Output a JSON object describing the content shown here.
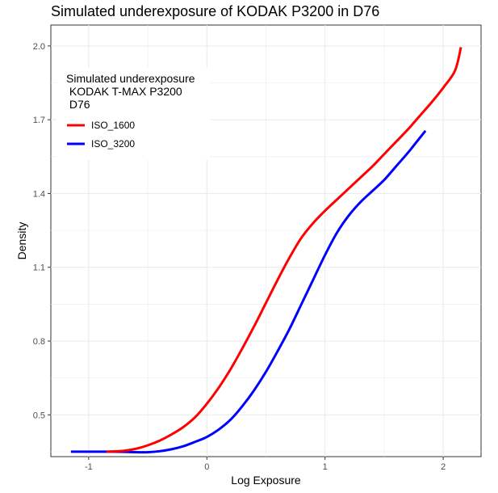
{
  "chart_data": {
    "type": "line",
    "title": "Simulated underexposure of KODAK P3200 in D76",
    "xlabel": "Log Exposure",
    "ylabel": "Density",
    "xlim": [
      -1.32,
      2.32
    ],
    "ylim": [
      0.33,
      2.085
    ],
    "x_ticks": [
      -1,
      0,
      1,
      2
    ],
    "x_tick_labels": [
      "-1",
      "0",
      "1",
      "2"
    ],
    "y_ticks": [
      0.5,
      0.8,
      1.1,
      1.4,
      1.7,
      2.0
    ],
    "y_tick_labels": [
      "0.5",
      "0.8",
      "1.1",
      "1.4",
      "1.7",
      "2.0"
    ],
    "grid": true,
    "legend": {
      "title_lines": [
        "Simulated underexposure",
        " KODAK T-MAX P3200",
        " D76"
      ],
      "position": "top-left-inside"
    },
    "series": [
      {
        "name": "ISO_1600",
        "color": "#ff0000",
        "x": [
          -0.85,
          -0.7,
          -0.6,
          -0.5,
          -0.4,
          -0.3,
          -0.2,
          -0.1,
          0.0,
          0.1,
          0.2,
          0.3,
          0.4,
          0.5,
          0.6,
          0.7,
          0.8,
          0.9,
          1.0,
          1.1,
          1.2,
          1.3,
          1.4,
          1.5,
          1.6,
          1.7,
          1.8,
          1.9,
          2.0,
          2.1,
          2.15
        ],
        "y": [
          0.35,
          0.354,
          0.362,
          0.376,
          0.395,
          0.42,
          0.45,
          0.49,
          0.545,
          0.61,
          0.685,
          0.77,
          0.86,
          0.955,
          1.05,
          1.14,
          1.22,
          1.28,
          1.33,
          1.375,
          1.42,
          1.465,
          1.51,
          1.56,
          1.61,
          1.66,
          1.715,
          1.77,
          1.83,
          1.9,
          1.995
        ]
      },
      {
        "name": "ISO_3200",
        "color": "#0000ff",
        "x": [
          -1.15,
          -0.8,
          -0.6,
          -0.5,
          -0.4,
          -0.3,
          -0.2,
          -0.1,
          0.0,
          0.1,
          0.2,
          0.3,
          0.4,
          0.5,
          0.6,
          0.7,
          0.8,
          0.9,
          1.0,
          1.1,
          1.2,
          1.3,
          1.4,
          1.5,
          1.6,
          1.7,
          1.8,
          1.85
        ],
        "y": [
          0.35,
          0.35,
          0.348,
          0.348,
          0.352,
          0.36,
          0.372,
          0.39,
          0.41,
          0.44,
          0.48,
          0.535,
          0.6,
          0.675,
          0.76,
          0.85,
          0.95,
          1.05,
          1.15,
          1.24,
          1.31,
          1.365,
          1.41,
          1.455,
          1.51,
          1.565,
          1.625,
          1.655
        ]
      }
    ]
  }
}
